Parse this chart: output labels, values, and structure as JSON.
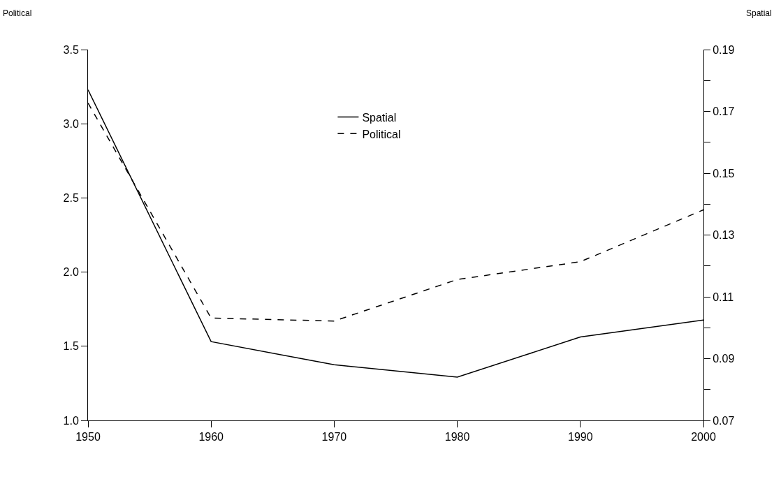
{
  "chart_data": {
    "type": "line",
    "ylabel": "Political",
    "y2label": "Spatial",
    "x": [
      1950,
      1960,
      1970,
      1980,
      1990,
      2000
    ],
    "xlim": [
      1950,
      2000
    ],
    "xticks": [
      1950,
      1960,
      1970,
      1980,
      1990,
      2000
    ],
    "ylim": [
      1.0,
      3.5
    ],
    "yticks": [
      {
        "value": 1.0,
        "label": "1.0"
      },
      1.5,
      {
        "value": 2.0,
        "label": "2.0"
      },
      2.5,
      {
        "value": 3.0,
        "label": "3.0"
      },
      3.5
    ],
    "y2lim": [
      0.07,
      0.19
    ],
    "y2ticks": [
      0.07,
      {
        "value": 0.08,
        "label": null
      },
      0.09,
      {
        "value": 0.1,
        "label": null
      },
      0.11,
      {
        "value": 0.12,
        "label": null
      },
      0.13,
      {
        "value": 0.14,
        "label": null
      },
      0.15,
      {
        "value": 0.16,
        "label": null
      },
      0.17,
      {
        "value": 0.18,
        "label": null
      },
      0.19
    ],
    "series": [
      {
        "name": "Spatial",
        "color": "#000000",
        "axis": "y2",
        "line_style": "solid",
        "values": [
          0.177,
          0.0955,
          0.088,
          0.084,
          0.097,
          0.1025
        ]
      },
      {
        "name": "Political",
        "color": "#000000",
        "line_style": "dashed",
        "values": [
          3.14,
          1.69,
          1.67,
          1.95,
          2.07,
          2.42
        ]
      }
    ],
    "legend": "top",
    "grid": false,
    "marker": "none"
  }
}
